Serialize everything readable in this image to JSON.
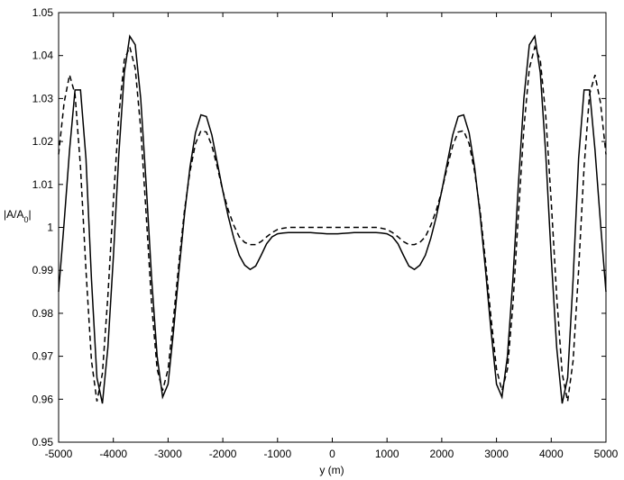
{
  "chart_data": {
    "type": "line",
    "xlabel": "y (m)",
    "ylabel": {
      "main": "|A/A",
      "sub": "0",
      "end": "|"
    },
    "x": [
      -5000,
      -4900,
      -4800,
      -4700,
      -4600,
      -4500,
      -4400,
      -4300,
      -4200,
      -4100,
      -4000,
      -3900,
      -3800,
      -3700,
      -3600,
      -3500,
      -3400,
      -3300,
      -3200,
      -3100,
      -3000,
      -2900,
      -2800,
      -2700,
      -2600,
      -2500,
      -2400,
      -2300,
      -2200,
      -2100,
      -2000,
      -1900,
      -1800,
      -1700,
      -1600,
      -1500,
      -1400,
      -1300,
      -1200,
      -1100,
      -1000,
      -900,
      -800,
      -700,
      -600,
      -500,
      -400,
      -300,
      -200,
      -100,
      0,
      100,
      200,
      300,
      400,
      500,
      600,
      700,
      800,
      900,
      1000,
      1100,
      1200,
      1300,
      1400,
      1500,
      1600,
      1700,
      1800,
      1900,
      2000,
      2100,
      2200,
      2300,
      2400,
      2500,
      2600,
      2700,
      2800,
      2900,
      3000,
      3100,
      3200,
      3300,
      3400,
      3500,
      3600,
      3700,
      3800,
      3900,
      4000,
      4100,
      4200,
      4300,
      4400,
      4500,
      4600,
      4700,
      4800,
      4900,
      5000
    ],
    "series": [
      {
        "color": "#000000",
        "style": "solid",
        "values": [
          0.985,
          1.001,
          1.018,
          1.032,
          1.032,
          1.016,
          0.988,
          0.965,
          0.959,
          0.972,
          0.993,
          1.017,
          1.036,
          1.0445,
          1.0425,
          1.03,
          1.01,
          0.988,
          0.97,
          0.9605,
          0.9635,
          0.976,
          0.99,
          1.003,
          1.014,
          1.022,
          1.0262,
          1.0258,
          1.0215,
          1.015,
          1.0085,
          1.0025,
          0.9975,
          0.9935,
          0.9912,
          0.9902,
          0.991,
          0.9935,
          0.9962,
          0.9978,
          0.9985,
          0.9987,
          0.9988,
          0.9988,
          0.9988,
          0.9988,
          0.9988,
          0.9987,
          0.9986,
          0.9985,
          0.9985,
          0.9985,
          0.9986,
          0.9987,
          0.9988,
          0.9988,
          0.9988,
          0.9988,
          0.9988,
          0.9987,
          0.9985,
          0.9978,
          0.9962,
          0.9935,
          0.991,
          0.9902,
          0.9912,
          0.9935,
          0.9975,
          1.0025,
          1.0085,
          1.015,
          1.0215,
          1.0258,
          1.0262,
          1.022,
          1.014,
          1.003,
          0.99,
          0.976,
          0.9635,
          0.9605,
          0.97,
          0.988,
          1.01,
          1.03,
          1.0425,
          1.0445,
          1.036,
          1.017,
          0.993,
          0.972,
          0.959,
          0.965,
          0.988,
          1.016,
          1.032,
          1.032,
          1.018,
          1.001,
          0.985
        ]
      },
      {
        "color": "#000000",
        "style": "dashed",
        "values": [
          1.017,
          1.029,
          1.0355,
          1.031,
          1.014,
          0.99,
          0.969,
          0.9595,
          0.966,
          0.984,
          1.006,
          1.026,
          1.039,
          1.042,
          1.037,
          1.023,
          1.003,
          0.982,
          0.967,
          0.962,
          0.967,
          0.979,
          0.992,
          1.004,
          1.013,
          1.0195,
          1.0225,
          1.0222,
          1.019,
          1.014,
          1.0085,
          1.004,
          1.0005,
          0.9978,
          0.9965,
          0.996,
          0.996,
          0.9967,
          0.9978,
          0.9988,
          0.9995,
          0.9998,
          1,
          1,
          1,
          1,
          1,
          1,
          1,
          1,
          1,
          1,
          1,
          1,
          1,
          1,
          1,
          1,
          1,
          0.9998,
          0.9995,
          0.9988,
          0.9978,
          0.9967,
          0.996,
          0.996,
          0.9965,
          0.9978,
          1.0005,
          1.004,
          1.0085,
          1.014,
          1.019,
          1.0222,
          1.0225,
          1.0195,
          1.013,
          1.004,
          0.992,
          0.979,
          0.967,
          0.962,
          0.967,
          0.982,
          1.003,
          1.023,
          1.037,
          1.042,
          1.039,
          1.026,
          1.006,
          0.984,
          0.966,
          0.9595,
          0.969,
          0.99,
          1.014,
          1.031,
          1.0355,
          1.029,
          1.017
        ]
      }
    ],
    "xlim": [
      -5000,
      5000
    ],
    "xticks": [
      -5000,
      -4000,
      -3000,
      -2000,
      -1000,
      0,
      1000,
      2000,
      3000,
      4000,
      5000
    ],
    "ylim": [
      0.95,
      1.05
    ],
    "yticks": [
      0.95,
      0.96,
      0.97,
      0.98,
      0.99,
      1,
      1.01,
      1.02,
      1.03,
      1.04,
      1.05
    ],
    "grid": false
  }
}
